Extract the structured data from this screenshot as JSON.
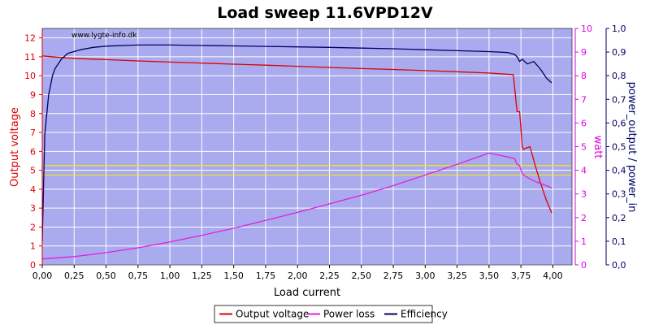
{
  "chart_data": {
    "type": "line",
    "title": "Load sweep 11.6VPD12V",
    "watermark": "www.lygte-info.dk",
    "xlabel": "Load current",
    "ylabel_left": "Output voltage",
    "ylabel_right1": "watt",
    "ylabel_right2": "power_output / power_in",
    "xlim": [
      0,
      4.15
    ],
    "ylim_left": [
      0,
      12.5
    ],
    "ylim_right1": [
      0,
      10
    ],
    "ylim_right2": [
      0,
      1.0
    ],
    "x_ticks": [
      "0,00",
      "0,25",
      "0,50",
      "0,75",
      "1,00",
      "1,25",
      "1,50",
      "1,75",
      "2,00",
      "2,25",
      "2,50",
      "2,75",
      "3,00",
      "3,25",
      "3,50",
      "3,75",
      "4,00"
    ],
    "y_left_ticks": [
      "0",
      "1",
      "2",
      "3",
      "4",
      "5",
      "6",
      "7",
      "8",
      "9",
      "10",
      "11",
      "12"
    ],
    "y_right1_ticks": [
      "0",
      "1",
      "2",
      "3",
      "4",
      "5",
      "6",
      "7",
      "8",
      "9",
      "10"
    ],
    "y_right2_ticks": [
      "0,0",
      "0,1",
      "0,2",
      "0,3",
      "0,4",
      "0,5",
      "0,6",
      "0,7",
      "0,8",
      "0,9",
      "1,0"
    ],
    "reference_lines_left": [
      5.25,
      4.75
    ],
    "grid": true,
    "legend_position": "bottom-center",
    "colors": {
      "plot_bg": "#aaaaee",
      "grid": "#ffffff",
      "voltage": "#dd0000",
      "power": "#dd22dd",
      "efficiency": "#000066",
      "reference": "#eeee00",
      "left_axis": "#dd0000",
      "right1_axis": "#dd00dd",
      "right2_axis": "#000066"
    },
    "series": [
      {
        "name": "Output voltage",
        "axis": "left",
        "x": [
          0,
          0.1,
          0.2,
          0.3,
          0.5,
          0.75,
          1.0,
          1.25,
          1.5,
          1.75,
          2.0,
          2.25,
          2.5,
          2.75,
          3.0,
          3.25,
          3.5,
          3.69,
          3.7,
          3.72,
          3.74,
          3.76,
          3.77,
          3.78,
          3.8,
          3.82,
          3.84,
          3.86,
          3.9,
          3.95,
          3.99
        ],
        "y": [
          11.05,
          10.99,
          10.94,
          10.9,
          10.85,
          10.78,
          10.72,
          10.67,
          10.61,
          10.56,
          10.5,
          10.44,
          10.38,
          10.33,
          10.27,
          10.21,
          10.14,
          10.06,
          9.4,
          8.1,
          8.1,
          6.25,
          6.1,
          6.15,
          6.2,
          6.25,
          5.8,
          5.3,
          4.4,
          3.4,
          2.75
        ]
      },
      {
        "name": "Power loss",
        "axis": "right1",
        "x": [
          0,
          0.25,
          0.5,
          0.75,
          1.0,
          1.25,
          1.5,
          1.75,
          2.0,
          2.25,
          2.5,
          2.75,
          3.0,
          3.25,
          3.5,
          3.7,
          3.72,
          3.74,
          3.76,
          3.8,
          3.85,
          3.9,
          3.95,
          3.99
        ],
        "y": [
          0.25,
          0.35,
          0.52,
          0.72,
          0.97,
          1.25,
          1.55,
          1.88,
          2.22,
          2.58,
          2.95,
          3.35,
          3.8,
          4.25,
          4.73,
          4.5,
          4.25,
          4.2,
          3.85,
          3.7,
          3.55,
          3.45,
          3.35,
          3.25
        ]
      },
      {
        "name": "Efficiency",
        "axis": "right2",
        "x": [
          0,
          0.02,
          0.05,
          0.08,
          0.1,
          0.15,
          0.2,
          0.3,
          0.4,
          0.5,
          0.75,
          1.0,
          1.25,
          1.5,
          1.75,
          2.0,
          2.25,
          2.5,
          2.75,
          3.0,
          3.25,
          3.5,
          3.65,
          3.7,
          3.72,
          3.74,
          3.76,
          3.8,
          3.85,
          3.9,
          3.95,
          3.99
        ],
        "y": [
          0.1,
          0.55,
          0.72,
          0.8,
          0.83,
          0.87,
          0.895,
          0.91,
          0.92,
          0.925,
          0.93,
          0.93,
          0.928,
          0.926,
          0.924,
          0.922,
          0.92,
          0.917,
          0.914,
          0.91,
          0.906,
          0.902,
          0.898,
          0.89,
          0.88,
          0.86,
          0.87,
          0.85,
          0.86,
          0.83,
          0.79,
          0.77
        ]
      }
    ]
  }
}
